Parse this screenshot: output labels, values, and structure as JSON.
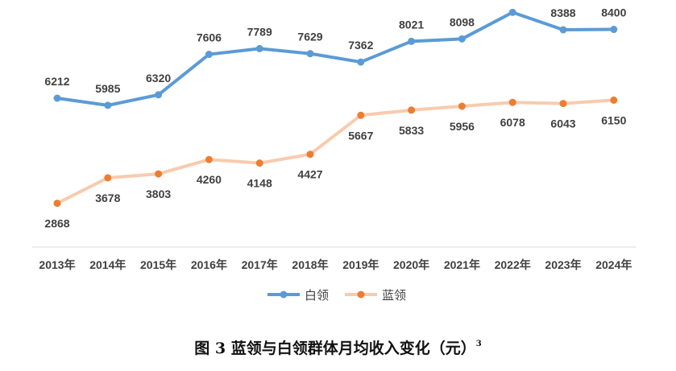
{
  "chart_data": {
    "type": "line",
    "categories": [
      "2013年",
      "2014年",
      "2015年",
      "2016年",
      "2017年",
      "2018年",
      "2019年",
      "2020年",
      "2021年",
      "2022年",
      "2023年",
      "2024年"
    ],
    "series": [
      {
        "name": "白领",
        "color": "#5b9bd5",
        "values": [
          6212,
          5985,
          6320,
          7606,
          7789,
          7629,
          7362,
          8021,
          8098,
          8942,
          8388,
          8400
        ]
      },
      {
        "name": "蓝领",
        "color": "#f8cbad",
        "marker_color": "#ed7d31",
        "values": [
          2868,
          3678,
          3803,
          4260,
          4148,
          4427,
          5667,
          5833,
          5956,
          6078,
          6043,
          6150
        ]
      }
    ],
    "legend_position": "bottom",
    "grid": false
  },
  "caption": {
    "text": "图 3  蓝领与白领群体月均收入变化（元）",
    "superscript": "3"
  }
}
